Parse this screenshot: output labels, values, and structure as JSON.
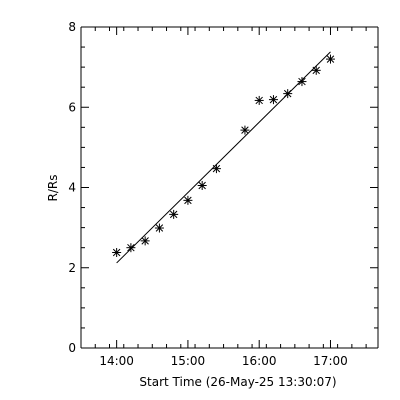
{
  "chart_data": {
    "type": "scatter",
    "xlabel": "Start Time (26-May-25 13:30:07)",
    "ylabel": "R/Rs",
    "xlim": [
      "13:30",
      "17:40"
    ],
    "ylim": [
      0,
      8
    ],
    "x_ticks": [
      "14:00",
      "15:00",
      "16:00",
      "17:00"
    ],
    "y_ticks": [
      0,
      2,
      4,
      6,
      8
    ],
    "grid": false,
    "marker": "asterisk",
    "series": [
      {
        "x": [
          "14:00",
          "14:12",
          "14:24",
          "14:36",
          "14:48",
          "15:00",
          "15:12",
          "15:24",
          "15:48",
          "16:00",
          "16:12",
          "16:24",
          "16:36",
          "16:48",
          "17:00"
        ],
        "y": [
          2.38,
          2.5,
          2.67,
          2.99,
          3.33,
          3.68,
          4.05,
          4.47,
          5.43,
          6.17,
          6.19,
          6.34,
          6.64,
          6.92,
          7.2
        ]
      }
    ],
    "fit_line": {
      "x": [
        "14:00",
        "17:00"
      ],
      "y": [
        2.12,
        7.38
      ]
    }
  }
}
